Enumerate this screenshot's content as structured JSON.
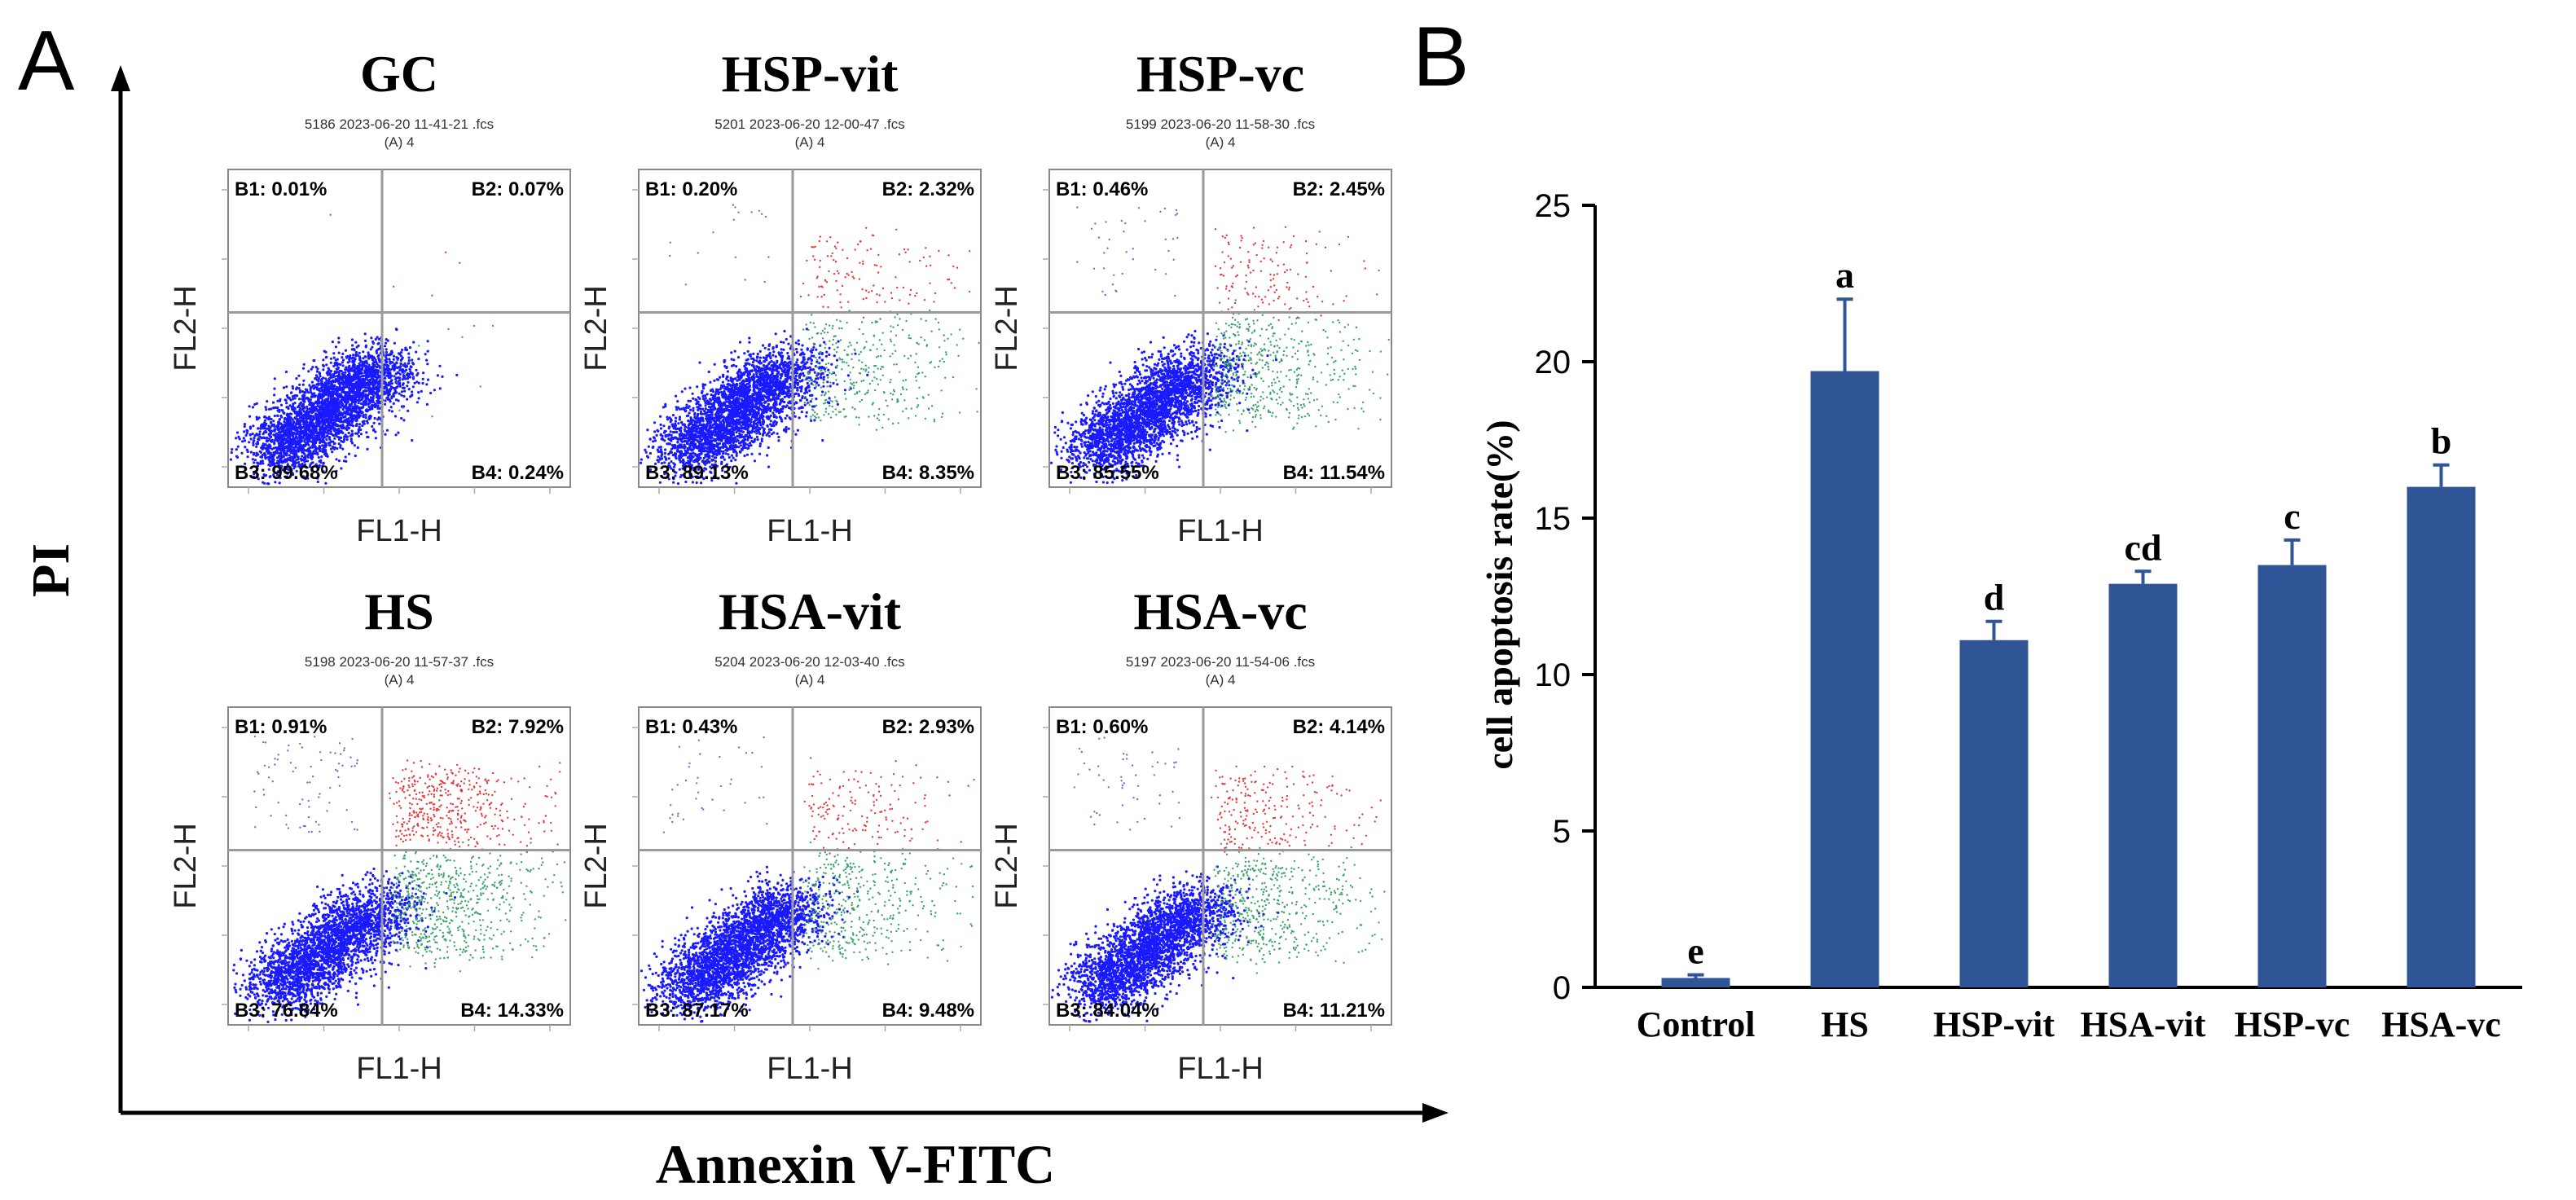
{
  "panel_a": {
    "letter": "A",
    "y_axis_label": "PI",
    "x_axis_label": "Annexin V-FITC",
    "plots": [
      {
        "title": "GC",
        "file": "5186 2023-06-20 11-41-21 .fcs",
        "gate": "(A) 4",
        "b1": "B1: 0.01%",
        "b2": "B2: 0.07%",
        "b3": "B3: 99.68%",
        "b4": "B4: 0.24%",
        "xlabel": "FL1-H",
        "ylabel": "FL2-H",
        "fractions": {
          "b1": 0.0001,
          "b2": 0.0007,
          "b3": 0.9968,
          "b4": 0.0024
        }
      },
      {
        "title": "HSP-vit",
        "file": "5201 2023-06-20 12-00-47 .fcs",
        "gate": "(A) 4",
        "b1": "B1: 0.20%",
        "b2": "B2: 2.32%",
        "b3": "B3: 89.13%",
        "b4": "B4: 8.35%",
        "xlabel": "FL1-H",
        "ylabel": "FL2-H",
        "fractions": {
          "b1": 0.002,
          "b2": 0.0232,
          "b3": 0.8913,
          "b4": 0.0835
        }
      },
      {
        "title": "HSP-vc",
        "file": "5199 2023-06-20 11-58-30 .fcs",
        "gate": "(A) 4",
        "b1": "B1: 0.46%",
        "b2": "B2: 2.45%",
        "b3": "B3: 85.55%",
        "b4": "B4: 11.54%",
        "xlabel": "FL1-H",
        "ylabel": "FL2-H",
        "fractions": {
          "b1": 0.0046,
          "b2": 0.0245,
          "b3": 0.8555,
          "b4": 0.1154
        }
      },
      {
        "title": "HS",
        "file": "5198 2023-06-20 11-57-37 .fcs",
        "gate": "(A) 4",
        "b1": "B1: 0.91%",
        "b2": "B2: 7.92%",
        "b3": "B3: 76.84%",
        "b4": "B4: 14.33%",
        "xlabel": "FL1-H",
        "ylabel": "FL2-H",
        "fractions": {
          "b1": 0.0091,
          "b2": 0.0792,
          "b3": 0.7684,
          "b4": 0.1433
        }
      },
      {
        "title": "HSA-vit",
        "file": "5204 2023-06-20 12-03-40 .fcs",
        "gate": "(A) 4",
        "b1": "B1: 0.43%",
        "b2": "B2: 2.93%",
        "b3": "B3: 87.17%",
        "b4": "B4: 9.48%",
        "xlabel": "FL1-H",
        "ylabel": "FL2-H",
        "fractions": {
          "b1": 0.0043,
          "b2": 0.0293,
          "b3": 0.8717,
          "b4": 0.0948
        }
      },
      {
        "title": "HSA-vc",
        "file": "5197 2023-06-20 11-54-06 .fcs",
        "gate": "(A) 4",
        "b1": "B1: 0.60%",
        "b2": "B2: 4.14%",
        "b3": "B3: 84.04%",
        "b4": "B4: 11.21%",
        "xlabel": "FL1-H",
        "ylabel": "FL2-H",
        "fractions": {
          "b1": 0.006,
          "b2": 0.0414,
          "b3": 0.8404,
          "b4": 0.1121
        }
      }
    ]
  },
  "panel_b": {
    "letter": "B"
  },
  "chart_data": {
    "type": "bar",
    "title": "",
    "xlabel": "",
    "ylabel": "cell apoptosis rate(%)",
    "ylim": [
      0,
      25
    ],
    "yticks": [
      0,
      5,
      10,
      15,
      20,
      25
    ],
    "categories": [
      "Control",
      "HS",
      "HSP-vit",
      "HSA-vit",
      "HSP-vc",
      "HSA-vc"
    ],
    "values": [
      0.3,
      19.7,
      11.1,
      12.9,
      13.5,
      16.0
    ],
    "errors": [
      0.1,
      2.3,
      0.6,
      0.4,
      0.8,
      0.7
    ],
    "significance": [
      "e",
      "a",
      "d",
      "cd",
      "c",
      "b"
    ],
    "bar_color": "#2f5597"
  }
}
